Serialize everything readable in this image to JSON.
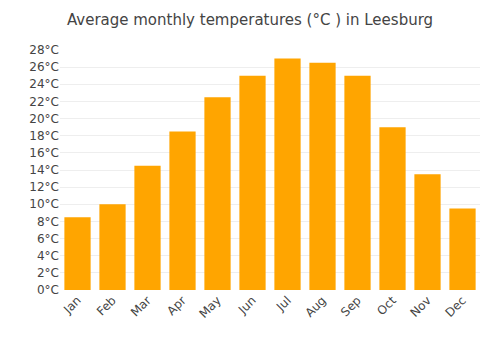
{
  "chart_data": {
    "type": "bar",
    "title": "Average monthly temperatures (°C ) in Leesburg",
    "categories": [
      "Jan",
      "Feb",
      "Mar",
      "Apr",
      "May",
      "Jun",
      "Jul",
      "Aug",
      "Sep",
      "Oct",
      "Nov",
      "Dec"
    ],
    "values": [
      8.5,
      10.0,
      14.5,
      18.5,
      22.5,
      25.0,
      27.0,
      26.5,
      25.0,
      19.0,
      13.5,
      9.5
    ],
    "color": "#FFA500",
    "ylim": [
      0,
      28
    ],
    "yticks": [
      {
        "value": 0,
        "label": "0°C"
      },
      {
        "value": 2,
        "label": "2°C"
      },
      {
        "value": 4,
        "label": "4°C"
      },
      {
        "value": 6,
        "label": "6°C"
      },
      {
        "value": 8,
        "label": "8°C"
      },
      {
        "value": 10,
        "label": "10°C"
      },
      {
        "value": 12,
        "label": "12°C"
      },
      {
        "value": 14,
        "label": "14°C"
      },
      {
        "value": 16,
        "label": "16°C"
      },
      {
        "value": 18,
        "label": "18°C"
      },
      {
        "value": 20,
        "label": "20°C"
      },
      {
        "value": 22,
        "label": "22°C"
      },
      {
        "value": 24,
        "label": "24°C"
      },
      {
        "value": 26,
        "label": "26°C"
      },
      {
        "value": 28,
        "label": "28°C"
      }
    ],
    "grid": true
  }
}
